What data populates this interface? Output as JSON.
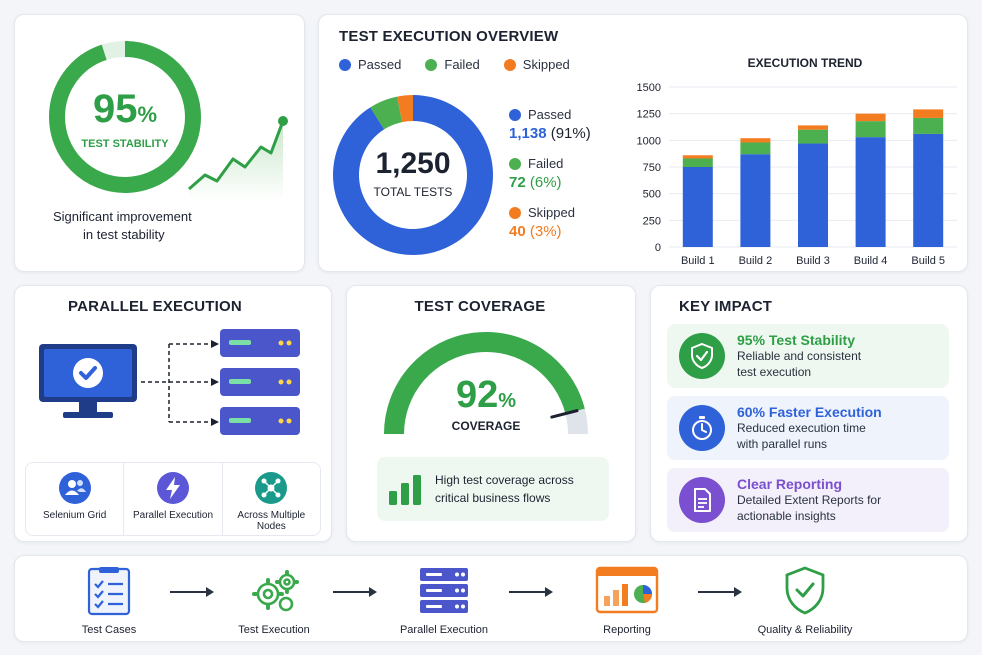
{
  "stability": {
    "percent": "95",
    "percent_sign": "%",
    "label": "TEST STABILITY",
    "caption_line1": "Significant improvement",
    "caption_line2": "in test stability",
    "value": 0.95
  },
  "overview": {
    "title": "TEST EXECUTION OVERVIEW",
    "legend": [
      {
        "label": "Passed",
        "color": "#2f62d9"
      },
      {
        "label": "Failed",
        "color": "#4caf50"
      },
      {
        "label": "Skipped",
        "color": "#f47c20"
      }
    ],
    "total_value": "1,250",
    "total_label": "TOTAL TESTS",
    "stats": [
      {
        "label": "Passed",
        "value": "1,138",
        "pct": "(91%)",
        "color": "#2f62d9"
      },
      {
        "label": "Failed",
        "value": "72",
        "pct": "(6%)",
        "color": "#4caf50"
      },
      {
        "label": "Skipped",
        "value": "40",
        "pct": "(3%)",
        "color": "#f47c20"
      }
    ]
  },
  "chart_data": [
    {
      "type": "pie",
      "categories": [
        "Passed",
        "Failed",
        "Skipped"
      ],
      "values": [
        1138,
        72,
        40
      ],
      "title": ""
    },
    {
      "type": "bar",
      "title": "EXECUTION TREND",
      "categories": [
        "Build 1",
        "Build 2",
        "Build 3",
        "Build 4",
        "Build 5"
      ],
      "series": [
        {
          "name": "Passed",
          "values": [
            750,
            870,
            970,
            1030,
            1060
          ]
        },
        {
          "name": "Failed",
          "values": [
            80,
            110,
            130,
            150,
            150
          ]
        },
        {
          "name": "Skipped",
          "values": [
            30,
            40,
            40,
            70,
            80
          ]
        }
      ],
      "yticks": [
        "0",
        "250",
        "500",
        "750",
        "1000",
        "1250",
        "1500"
      ],
      "ylim": [
        0,
        1500
      ],
      "stacked": true,
      "grid": true
    }
  ],
  "parallel": {
    "title": "PARALLEL EXECUTION",
    "features": [
      {
        "label": "Selenium Grid",
        "icon": "users-icon"
      },
      {
        "label": "Parallel Execution",
        "icon": "lightning-icon"
      },
      {
        "label": "Across Multiple",
        "label2": "Nodes",
        "icon": "network-icon"
      }
    ]
  },
  "coverage": {
    "title": "TEST COVERAGE",
    "percent": "92",
    "percent_sign": "%",
    "label": "COVERAGE",
    "value": 0.92,
    "note_line1": "High test coverage across",
    "note_line2": "critical business flows"
  },
  "impact": {
    "title": "KEY IMPACT",
    "items": [
      {
        "head": "95% Test Stability",
        "desc1": "Reliable and consistent",
        "desc2": "test execution",
        "color": "#2e9e47",
        "bg": "#eef8f0",
        "icon": "shield-check-icon"
      },
      {
        "head": "60% Faster Execution",
        "desc1": "Reduced execution time",
        "desc2": "with parallel runs",
        "color": "#2f62d9",
        "bg": "#eef3fc",
        "icon": "stopwatch-icon"
      },
      {
        "head": "Clear Reporting",
        "desc1": "Detailed Extent Reports for",
        "desc2": "actionable insights",
        "color": "#7a4fd0",
        "bg": "#f3effb",
        "icon": "document-icon"
      }
    ]
  },
  "flow": {
    "steps": [
      {
        "label": "Test Cases",
        "icon": "checklist-icon"
      },
      {
        "label": "Test Execution",
        "icon": "gears-icon"
      },
      {
        "label": "Parallel Execution",
        "icon": "server-stack-icon"
      },
      {
        "label": "Reporting",
        "icon": "report-chart-icon"
      },
      {
        "label": "Quality & Reliability",
        "icon": "shield-check-icon"
      }
    ]
  }
}
